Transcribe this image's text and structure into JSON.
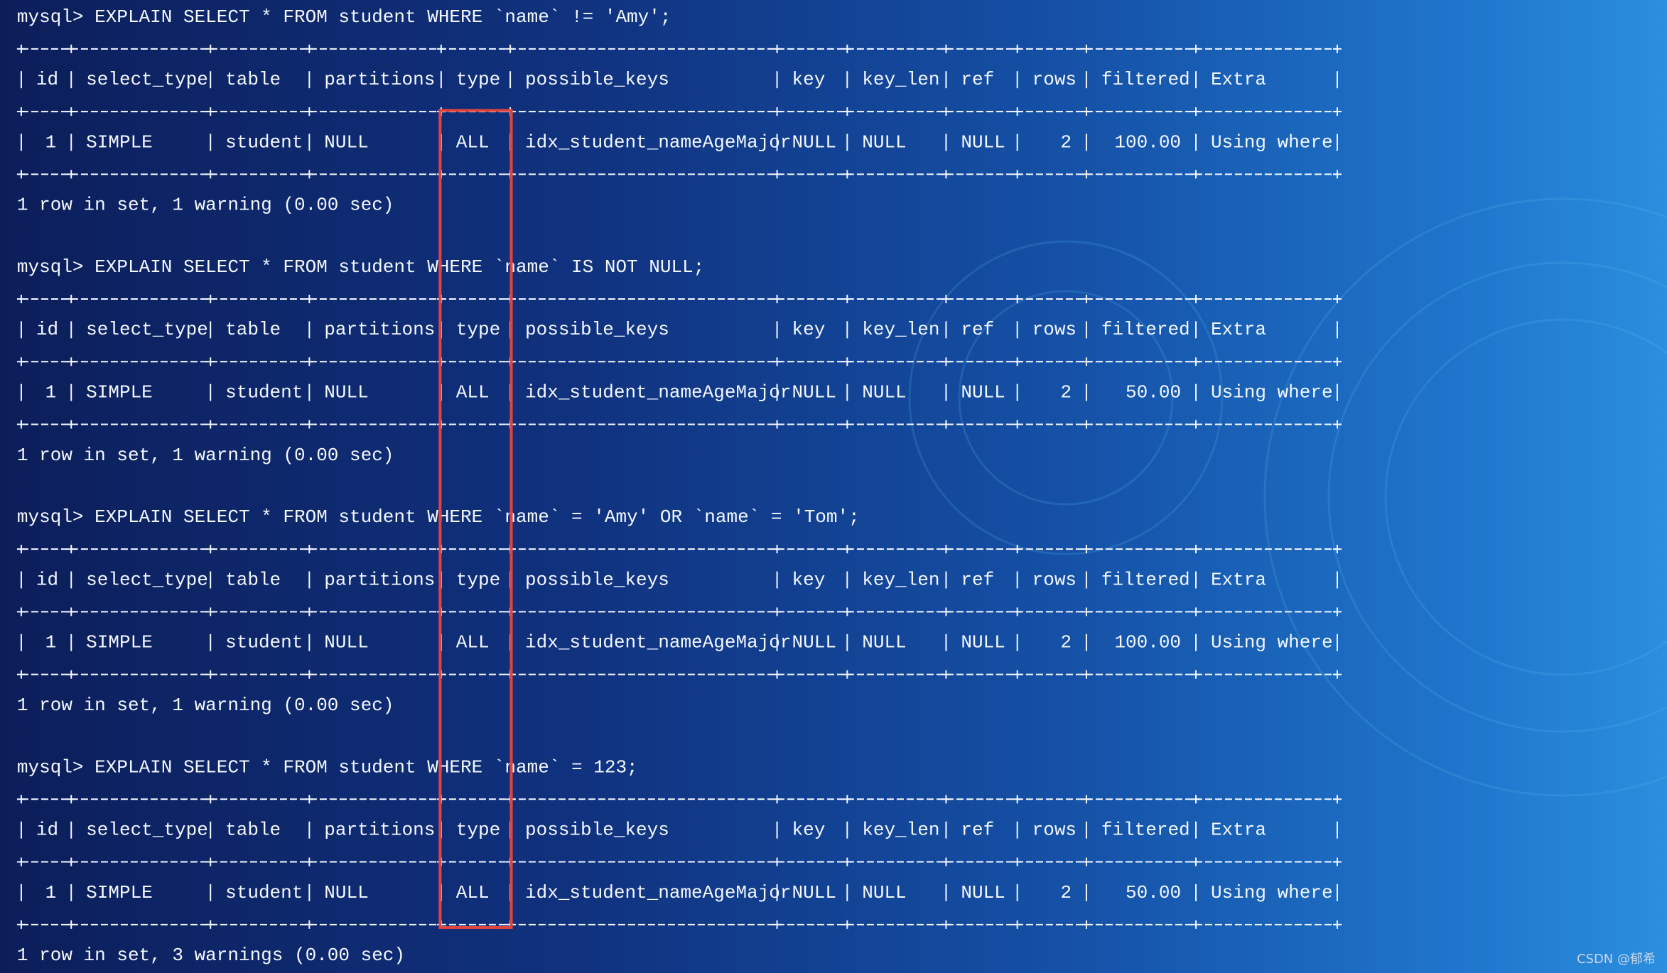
{
  "queries": [
    {
      "prompt": "mysql> EXPLAIN SELECT * FROM student WHERE `name` != 'Amy';",
      "columns": [
        "id",
        "select_type",
        "table",
        "partitions",
        "type",
        "possible_keys",
        "key",
        "key_len",
        "ref",
        "rows",
        "filtered",
        "Extra"
      ],
      "row": [
        "1",
        "SIMPLE",
        "student",
        "NULL",
        "ALL",
        "idx_student_nameAgeMajor",
        "NULL",
        "NULL",
        "NULL",
        "2",
        "100.00",
        "Using where"
      ],
      "footer": "1 row in set, 1 warning (0.00 sec)"
    },
    {
      "prompt": "mysql> EXPLAIN SELECT * FROM student WHERE `name` IS NOT NULL;",
      "columns": [
        "id",
        "select_type",
        "table",
        "partitions",
        "type",
        "possible_keys",
        "key",
        "key_len",
        "ref",
        "rows",
        "filtered",
        "Extra"
      ],
      "row": [
        "1",
        "SIMPLE",
        "student",
        "NULL",
        "ALL",
        "idx_student_nameAgeMajor",
        "NULL",
        "NULL",
        "NULL",
        "2",
        "50.00",
        "Using where"
      ],
      "footer": "1 row in set, 1 warning (0.00 sec)"
    },
    {
      "prompt": "mysql> EXPLAIN SELECT * FROM student WHERE `name` = 'Amy' OR `name` = 'Tom';",
      "columns": [
        "id",
        "select_type",
        "table",
        "partitions",
        "type",
        "possible_keys",
        "key",
        "key_len",
        "ref",
        "rows",
        "filtered",
        "Extra"
      ],
      "row": [
        "1",
        "SIMPLE",
        "student",
        "NULL",
        "ALL",
        "idx_student_nameAgeMajor",
        "NULL",
        "NULL",
        "NULL",
        "2",
        "100.00",
        "Using where"
      ],
      "footer": "1 row in set, 1 warning (0.00 sec)"
    },
    {
      "prompt": "mysql> EXPLAIN SELECT * FROM student WHERE `name` = 123;",
      "columns": [
        "id",
        "select_type",
        "table",
        "partitions",
        "type",
        "possible_keys",
        "key",
        "key_len",
        "ref",
        "rows",
        "filtered",
        "Extra"
      ],
      "row": [
        "1",
        "SIMPLE",
        "student",
        "NULL",
        "ALL",
        "idx_student_nameAgeMajor",
        "NULL",
        "NULL",
        "NULL",
        "2",
        "50.00",
        "Using where"
      ],
      "footer": "1 row in set, 3 warnings (0.00 sec)"
    }
  ],
  "watermark": "CSDN @郁希"
}
